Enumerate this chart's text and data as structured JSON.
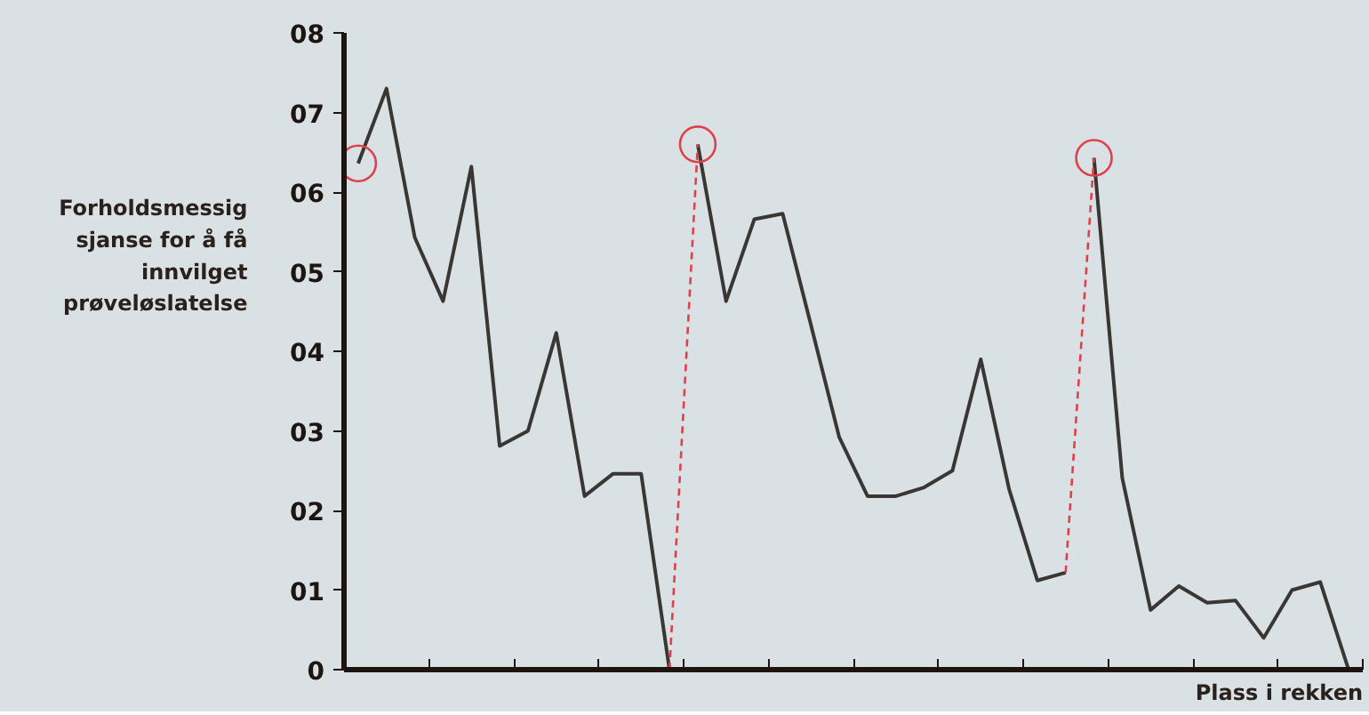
{
  "chart_data": {
    "type": "line",
    "xlabel": "Plass i rekken",
    "ylabel": "Forholdsmessig sjanse for å få innvilget prøveløslatelse",
    "categories": [
      null,
      null,
      null,
      null,
      null,
      null,
      null,
      null,
      null,
      null,
      null,
      null,
      null,
      null,
      null,
      null,
      null,
      null,
      null,
      null,
      null,
      null,
      null,
      null,
      null,
      null,
      null,
      null,
      null,
      null,
      null,
      null,
      null,
      null,
      null,
      null
    ],
    "ylim": [
      0,
      8
    ],
    "yticks": [
      {
        "value": 0,
        "label": "0"
      },
      {
        "value": 1,
        "label": "01"
      },
      {
        "value": 2,
        "label": "02"
      },
      {
        "value": 3,
        "label": "03"
      },
      {
        "value": 4,
        "label": "04"
      },
      {
        "value": 5,
        "label": "05"
      },
      {
        "value": 6,
        "label": "06"
      },
      {
        "value": 7,
        "label": "07"
      },
      {
        "value": 8,
        "label": "08"
      }
    ],
    "grid": false,
    "line_style": "solid",
    "marker": "none",
    "series": [
      {
        "color": "#3a3633",
        "values": [
          6.36,
          7.3,
          5.43,
          4.63,
          6.32,
          2.81,
          3.0,
          4.23,
          2.18,
          2.46,
          2.46,
          0,
          null,
          null,
          null,
          null,
          null,
          null,
          null,
          null,
          null,
          null,
          null,
          null,
          null,
          null,
          null,
          null,
          null,
          null,
          null,
          null,
          null,
          null,
          null,
          null
        ]
      },
      {
        "color": "#3a3633",
        "values": [
          null,
          null,
          null,
          null,
          null,
          null,
          null,
          null,
          null,
          null,
          null,
          null,
          6.6,
          4.63,
          5.66,
          5.73,
          4.33,
          2.92,
          2.18,
          2.18,
          2.29,
          2.5,
          3.9,
          2.27,
          1.12,
          1.22,
          null,
          null,
          null,
          null,
          null,
          null,
          null,
          null,
          null,
          null
        ]
      },
      {
        "color": "#3a3633",
        "values": [
          null,
          null,
          null,
          null,
          null,
          null,
          null,
          null,
          null,
          null,
          null,
          null,
          null,
          null,
          null,
          null,
          null,
          null,
          null,
          null,
          null,
          null,
          null,
          null,
          null,
          null,
          6.43,
          2.41,
          0.75,
          1.05,
          0.84,
          0.87,
          0.4,
          1.0,
          1.1,
          0
        ]
      },
      {
        "color": "#e0404a",
        "line_style": "dashed",
        "values": [
          null,
          null,
          null,
          null,
          null,
          null,
          null,
          null,
          null,
          null,
          null,
          0,
          6.6,
          null,
          null,
          null,
          null,
          null,
          null,
          null,
          null,
          null,
          null,
          null,
          null,
          null,
          null,
          null,
          null,
          null,
          null,
          null,
          null,
          null,
          null,
          null
        ]
      },
      {
        "color": "#e0404a",
        "line_style": "dashed",
        "values": [
          null,
          null,
          null,
          null,
          null,
          null,
          null,
          null,
          null,
          null,
          null,
          null,
          null,
          null,
          null,
          null,
          null,
          null,
          null,
          null,
          null,
          null,
          null,
          null,
          null,
          1.22,
          6.43,
          null,
          null,
          null,
          null,
          null,
          null,
          null,
          null,
          null
        ]
      },
      {
        "type": "scatter",
        "color": "#e0404a",
        "marker": "circle",
        "values": [
          6.36,
          null,
          null,
          null,
          null,
          null,
          null,
          null,
          null,
          null,
          null,
          null,
          6.6,
          null,
          null,
          null,
          null,
          null,
          null,
          null,
          null,
          null,
          null,
          null,
          null,
          null,
          6.43,
          null,
          null,
          null,
          null,
          null,
          null,
          null,
          null,
          null
        ]
      }
    ]
  }
}
